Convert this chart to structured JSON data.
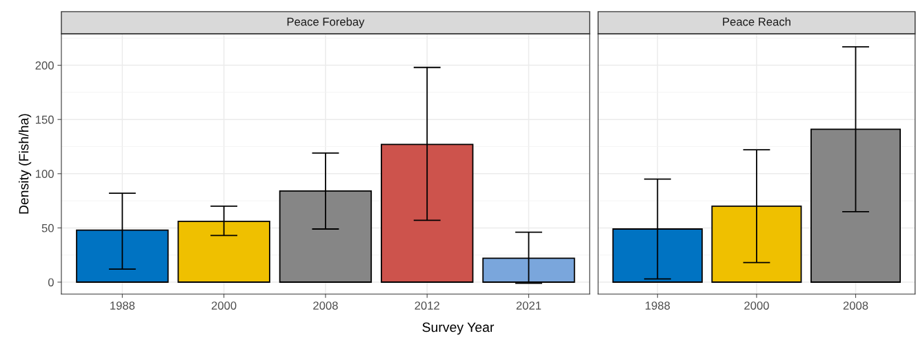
{
  "chart_data": [
    {
      "type": "bar",
      "title": "Peace Forebay",
      "ylabel": "Density (Fish/ha)",
      "xlabel": "Survey Year",
      "categories": [
        "1988",
        "2000",
        "2008",
        "2012",
        "2021"
      ],
      "values": [
        48,
        56,
        84,
        127,
        22
      ],
      "colors": [
        "#0073c2",
        "#efc000",
        "#868686",
        "#cd534c",
        "#7aa6dc"
      ],
      "errors": [
        [
          12,
          82
        ],
        [
          43,
          70
        ],
        [
          49,
          119
        ],
        [
          57,
          198
        ],
        [
          -1,
          46
        ]
      ],
      "ylim": [
        -11,
        229
      ],
      "yticks": [
        0,
        50,
        100,
        150,
        200
      ],
      "grid": true,
      "legend": false
    },
    {
      "type": "bar",
      "title": "Peace Reach",
      "categories": [
        "1988",
        "2000",
        "2008"
      ],
      "values": [
        49,
        70,
        141
      ],
      "colors": [
        "#0073c2",
        "#efc000",
        "#868686"
      ],
      "errors": [
        [
          3,
          95
        ],
        [
          18,
          122
        ],
        [
          65,
          217
        ]
      ],
      "ylim": [
        -11,
        229
      ],
      "yticks": [
        0,
        50,
        100,
        150,
        200
      ],
      "grid": true,
      "legend": false,
      "tick_labels": "x"
    }
  ]
}
